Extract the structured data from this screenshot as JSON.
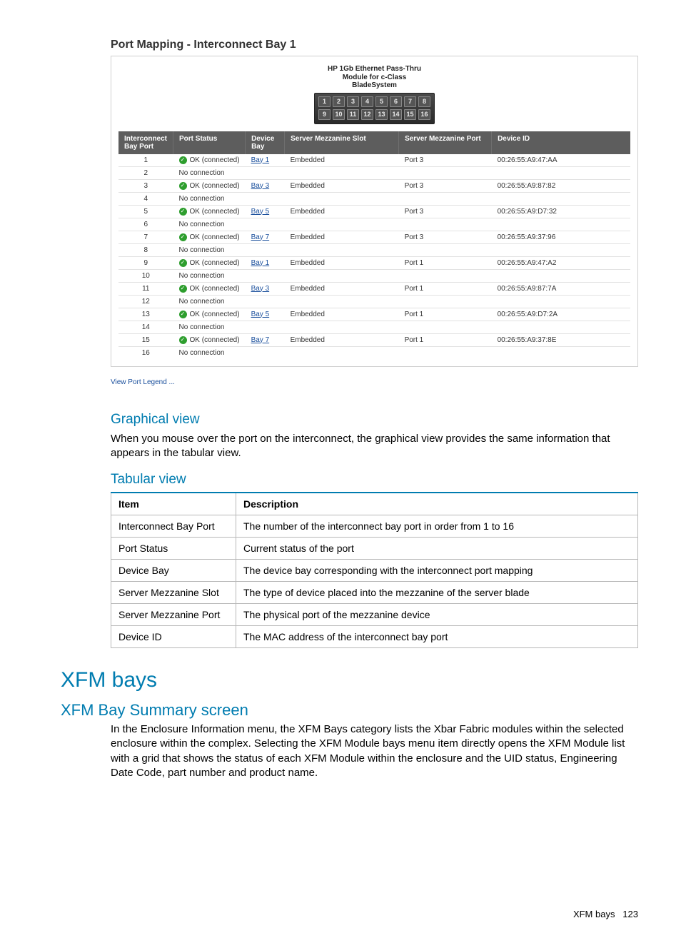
{
  "colors": {
    "accent": "#007cb0",
    "link": "#1a4f9c",
    "headerBg": "#5d5d5d",
    "okGreen": "#2e9e2e",
    "border": "#b8b8b8"
  },
  "portMapping": {
    "title": "Port Mapping - Interconnect Bay 1",
    "moduleCaption": [
      "HP 1Gb Ethernet Pass-Thru",
      "Module for c-Class",
      "BladeSystem"
    ],
    "portGrid": {
      "row1": [
        "1",
        "2",
        "3",
        "4",
        "5",
        "6",
        "7",
        "8"
      ],
      "row2": [
        "9",
        "10",
        "11",
        "12",
        "13",
        "14",
        "15",
        "16"
      ]
    },
    "legendLink": "View Port Legend ...",
    "columns": [
      "Interconnect Bay Port",
      "Port Status",
      "Device Bay",
      "Server Mezzanine Slot",
      "Server Mezzanine Port",
      "Device ID"
    ],
    "statusOK": "OK (connected)",
    "statusNone": "No connection",
    "rows": [
      {
        "port": "1",
        "ok": true,
        "bay": "Bay 1",
        "slot": "Embedded",
        "mezz": "Port 3",
        "mac": "00:26:55:A9:47:AA"
      },
      {
        "port": "2",
        "ok": false
      },
      {
        "port": "3",
        "ok": true,
        "bay": "Bay 3",
        "slot": "Embedded",
        "mezz": "Port 3",
        "mac": "00:26:55:A9:87:82"
      },
      {
        "port": "4",
        "ok": false
      },
      {
        "port": "5",
        "ok": true,
        "bay": "Bay 5",
        "slot": "Embedded",
        "mezz": "Port 3",
        "mac": "00:26:55:A9:D7:32"
      },
      {
        "port": "6",
        "ok": false
      },
      {
        "port": "7",
        "ok": true,
        "bay": "Bay 7",
        "slot": "Embedded",
        "mezz": "Port 3",
        "mac": "00:26:55:A9:37:96"
      },
      {
        "port": "8",
        "ok": false
      },
      {
        "port": "9",
        "ok": true,
        "bay": "Bay 1",
        "slot": "Embedded",
        "mezz": "Port 1",
        "mac": "00:26:55:A9:47:A2"
      },
      {
        "port": "10",
        "ok": false
      },
      {
        "port": "11",
        "ok": true,
        "bay": "Bay 3",
        "slot": "Embedded",
        "mezz": "Port 1",
        "mac": "00:26:55:A9:87:7A"
      },
      {
        "port": "12",
        "ok": false
      },
      {
        "port": "13",
        "ok": true,
        "bay": "Bay 5",
        "slot": "Embedded",
        "mezz": "Port 1",
        "mac": "00:26:55:A9:D7:2A"
      },
      {
        "port": "14",
        "ok": false
      },
      {
        "port": "15",
        "ok": true,
        "bay": "Bay 7",
        "slot": "Embedded",
        "mezz": "Port 1",
        "mac": "00:26:55:A9:37:8E"
      },
      {
        "port": "16",
        "ok": false
      }
    ]
  },
  "sections": {
    "graphical": {
      "title": "Graphical view",
      "body": "When you mouse over the port on the interconnect, the graphical view provides the same information that appears in the tabular view."
    },
    "tabular": {
      "title": "Tabular view",
      "headers": [
        "Item",
        "Description"
      ],
      "rows": [
        [
          "Interconnect Bay Port",
          "The number of the interconnect bay port in order from 1 to 16"
        ],
        [
          "Port Status",
          "Current status of the port"
        ],
        [
          "Device Bay",
          "The device bay corresponding with the interconnect port mapping"
        ],
        [
          "Server Mezzanine Slot",
          "The type of device placed into the mezzanine of the server blade"
        ],
        [
          "Server Mezzanine Port",
          "The physical port of the mezzanine device"
        ],
        [
          "Device ID",
          "The MAC address of the interconnect bay port"
        ]
      ]
    },
    "xfm": {
      "title": "XFM bays",
      "sub": "XFM Bay Summary screen",
      "body": "In the Enclosure Information menu, the XFM Bays category lists the Xbar Fabric modules within the selected enclosure within the complex. Selecting the XFM Module bays menu item directly opens the XFM Module list with a grid that shows the status of each XFM Module within the enclosure and the UID status, Engineering Date Code, part number and product name."
    }
  },
  "footer": {
    "section": "XFM bays",
    "page": "123"
  }
}
